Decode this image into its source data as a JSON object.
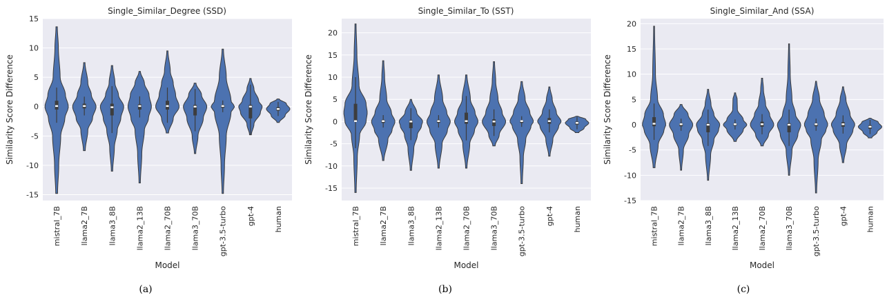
{
  "chart_data": [
    {
      "type": "violin",
      "title": "Single_Similar_Degree (SSD)",
      "xlabel": "Model",
      "ylabel": "Similarity Score Difference",
      "ylim": [
        -16,
        15
      ],
      "yticks": [
        -15,
        -10,
        -5,
        0,
        5,
        10,
        15
      ],
      "caption": "(a)",
      "categories": [
        "mistral_7B",
        "llama2_7B",
        "llama3_8B",
        "llama2_13B",
        "llama2_70B",
        "llama3_70B",
        "gpt-3.5-turbo",
        "gpt-4",
        "human"
      ],
      "violins": [
        {
          "min": -14.8,
          "max": 13.6,
          "q1": -0.5,
          "median": 0.1,
          "q3": 1.0,
          "profile": [
            [
              -14.8,
              0.08
            ],
            [
              -10,
              0.18
            ],
            [
              -5,
              0.35
            ],
            [
              -2,
              0.7
            ],
            [
              0,
              1.0
            ],
            [
              2,
              0.75
            ],
            [
              5,
              0.3
            ],
            [
              10,
              0.15
            ],
            [
              13.6,
              0.06
            ]
          ]
        },
        {
          "min": -7.5,
          "max": 7.5,
          "q1": -0.3,
          "median": 0.1,
          "q3": 0.5,
          "profile": [
            [
              -7.5,
              0.08
            ],
            [
              -4,
              0.3
            ],
            [
              -2,
              0.7
            ],
            [
              0,
              1.0
            ],
            [
              2,
              0.6
            ],
            [
              4,
              0.3
            ],
            [
              7.5,
              0.06
            ]
          ]
        },
        {
          "min": -11,
          "max": 7,
          "q1": -1.5,
          "median": -0.1,
          "q3": 0.5,
          "profile": [
            [
              -11,
              0.06
            ],
            [
              -7,
              0.2
            ],
            [
              -4,
              0.45
            ],
            [
              -2,
              0.75
            ],
            [
              0,
              1.0
            ],
            [
              2,
              0.55
            ],
            [
              4,
              0.25
            ],
            [
              7,
              0.06
            ]
          ]
        },
        {
          "min": -13,
          "max": 6,
          "q1": -0.5,
          "median": 0.1,
          "q3": 0.4,
          "profile": [
            [
              -13,
              0.06
            ],
            [
              -8,
              0.18
            ],
            [
              -4,
              0.4
            ],
            [
              -2,
              0.75
            ],
            [
              0,
              1.0
            ],
            [
              2,
              0.8
            ],
            [
              4,
              0.4
            ],
            [
              6,
              0.06
            ]
          ]
        },
        {
          "min": -4.5,
          "max": 9.5,
          "q1": -0.5,
          "median": 0.1,
          "q3": 1.0,
          "profile": [
            [
              -4.5,
              0.1
            ],
            [
              -2,
              0.5
            ],
            [
              0,
              1.0
            ],
            [
              2,
              0.7
            ],
            [
              4,
              0.5
            ],
            [
              6,
              0.25
            ],
            [
              9.5,
              0.05
            ]
          ]
        },
        {
          "min": -8,
          "max": 4,
          "q1": -1.5,
          "median": 0.0,
          "q3": 0.3,
          "profile": [
            [
              -8,
              0.06
            ],
            [
              -5,
              0.25
            ],
            [
              -2,
              0.7
            ],
            [
              0,
              1.0
            ],
            [
              2,
              0.55
            ],
            [
              4,
              0.08
            ]
          ]
        },
        {
          "min": -14.8,
          "max": 9.8,
          "q1": -0.2,
          "median": 0.1,
          "q3": 0.3,
          "profile": [
            [
              -14.8,
              0.06
            ],
            [
              -10,
              0.15
            ],
            [
              -5,
              0.3
            ],
            [
              -1,
              0.7
            ],
            [
              0,
              1.0
            ],
            [
              1,
              0.7
            ],
            [
              5,
              0.3
            ],
            [
              9.8,
              0.06
            ]
          ]
        },
        {
          "min": -4.8,
          "max": 4.8,
          "q1": -2.0,
          "median": 0.0,
          "q3": 0.3,
          "profile": [
            [
              -4.8,
              0.08
            ],
            [
              -3,
              0.3
            ],
            [
              -1,
              0.85
            ],
            [
              0,
              1.0
            ],
            [
              1,
              0.7
            ],
            [
              3,
              0.3
            ],
            [
              4.8,
              0.06
            ]
          ]
        },
        {
          "min": -2.7,
          "max": 1.3,
          "q1": -0.7,
          "median": -0.4,
          "q3": -0.1,
          "profile": [
            [
              -2.7,
              0.1
            ],
            [
              -1.5,
              0.6
            ],
            [
              -0.4,
              1.0
            ],
            [
              0.5,
              0.7
            ],
            [
              1.3,
              0.1
            ]
          ]
        }
      ]
    },
    {
      "type": "violin",
      "title": "Single_Similar_To (SST)",
      "xlabel": "Model",
      "ylabel": "Similarity Score Difference",
      "ylim": [
        -17.8,
        23.2
      ],
      "yticks": [
        -15,
        -10,
        -5,
        0,
        5,
        10,
        15,
        20
      ],
      "caption": "(b)",
      "categories": [
        "mistral_7B",
        "llama2_7B",
        "llama3_8B",
        "llama2_13B",
        "llama2_70B",
        "llama3_70B",
        "gpt-3.5-turbo",
        "gpt-4",
        "human"
      ],
      "violins": [
        {
          "min": -16,
          "max": 22,
          "q1": 0.0,
          "median": 0.1,
          "q3": 4.0,
          "profile": [
            [
              -16,
              0.06
            ],
            [
              -8,
              0.15
            ],
            [
              -3,
              0.35
            ],
            [
              0,
              0.9
            ],
            [
              2,
              1.0
            ],
            [
              4,
              0.9
            ],
            [
              8,
              0.3
            ],
            [
              15,
              0.12
            ],
            [
              22,
              0.05
            ]
          ]
        },
        {
          "min": -8.8,
          "max": 13.7,
          "q1": -0.3,
          "median": 0.1,
          "q3": 0.4,
          "profile": [
            [
              -8.8,
              0.06
            ],
            [
              -4,
              0.4
            ],
            [
              -2,
              0.75
            ],
            [
              0,
              1.0
            ],
            [
              2,
              0.7
            ],
            [
              5,
              0.3
            ],
            [
              10,
              0.12
            ],
            [
              13.7,
              0.05
            ]
          ]
        },
        {
          "min": -11,
          "max": 5,
          "q1": -1.5,
          "median": 0.0,
          "q3": 0.3,
          "profile": [
            [
              -11,
              0.06
            ],
            [
              -6,
              0.25
            ],
            [
              -3,
              0.55
            ],
            [
              -1,
              0.9
            ],
            [
              0,
              1.0
            ],
            [
              2,
              0.5
            ],
            [
              5,
              0.06
            ]
          ]
        },
        {
          "min": -10.5,
          "max": 10.5,
          "q1": -0.3,
          "median": 0.1,
          "q3": 0.4,
          "profile": [
            [
              -10.5,
              0.06
            ],
            [
              -5,
              0.3
            ],
            [
              -2,
              0.75
            ],
            [
              0,
              1.0
            ],
            [
              2,
              0.7
            ],
            [
              5,
              0.35
            ],
            [
              10.5,
              0.06
            ]
          ]
        },
        {
          "min": -10.5,
          "max": 10.5,
          "q1": -0.5,
          "median": 0.1,
          "q3": 2.0,
          "profile": [
            [
              -10.5,
              0.06
            ],
            [
              -5,
              0.3
            ],
            [
              -2,
              0.7
            ],
            [
              0,
              1.0
            ],
            [
              2,
              0.75
            ],
            [
              5,
              0.35
            ],
            [
              10.5,
              0.06
            ]
          ]
        },
        {
          "min": -5.5,
          "max": 13.5,
          "q1": -1.0,
          "median": 0.0,
          "q3": 0.5,
          "profile": [
            [
              -5.5,
              0.1
            ],
            [
              -3,
              0.45
            ],
            [
              0,
              1.0
            ],
            [
              2,
              0.7
            ],
            [
              5,
              0.35
            ],
            [
              9,
              0.15
            ],
            [
              13.5,
              0.05
            ]
          ]
        },
        {
          "min": -14,
          "max": 9,
          "q1": -0.3,
          "median": 0.1,
          "q3": 0.3,
          "profile": [
            [
              -14,
              0.06
            ],
            [
              -8,
              0.15
            ],
            [
              -4,
              0.35
            ],
            [
              -1,
              0.8
            ],
            [
              0,
              1.0
            ],
            [
              2,
              0.7
            ],
            [
              5,
              0.3
            ],
            [
              9,
              0.06
            ]
          ]
        },
        {
          "min": -7.8,
          "max": 7.8,
          "q1": -0.5,
          "median": 0.1,
          "q3": 0.8,
          "profile": [
            [
              -7.8,
              0.06
            ],
            [
              -4,
              0.3
            ],
            [
              -1,
              0.8
            ],
            [
              0,
              1.0
            ],
            [
              2,
              0.6
            ],
            [
              5,
              0.25
            ],
            [
              7.8,
              0.05
            ]
          ]
        },
        {
          "min": -2.5,
          "max": 1.2,
          "q1": -0.7,
          "median": -0.3,
          "q3": 0.0,
          "profile": [
            [
              -2.5,
              0.15
            ],
            [
              -1.5,
              0.6
            ],
            [
              -0.3,
              1.0
            ],
            [
              0.5,
              0.75
            ],
            [
              1.2,
              0.12
            ]
          ]
        }
      ]
    },
    {
      "type": "violin",
      "title": "Single_Similar_And (SSA)",
      "xlabel": "Model",
      "ylabel": "Similarity Score Difference",
      "ylim": [
        -15,
        21
      ],
      "yticks": [
        -15,
        -10,
        -5,
        0,
        5,
        10,
        15,
        20
      ],
      "caption": "(c)",
      "categories": [
        "mistral_7B",
        "llama2_7B",
        "llama3_8B",
        "llama2_13B",
        "llama2_70B",
        "llama3_70B",
        "gpt-3.5-turbo",
        "gpt-4",
        "human"
      ],
      "violins": [
        {
          "min": -8.5,
          "max": 19.5,
          "q1": -0.3,
          "median": 0.2,
          "q3": 1.5,
          "profile": [
            [
              -8.5,
              0.08
            ],
            [
              -4,
              0.35
            ],
            [
              -1,
              0.85
            ],
            [
              0,
              1.0
            ],
            [
              2,
              0.8
            ],
            [
              5,
              0.3
            ],
            [
              10,
              0.12
            ],
            [
              19.5,
              0.04
            ]
          ]
        },
        {
          "min": -9,
          "max": 4,
          "q1": -0.3,
          "median": 0.1,
          "q3": 0.3,
          "profile": [
            [
              -9,
              0.05
            ],
            [
              -5,
              0.2
            ],
            [
              -2,
              0.65
            ],
            [
              0,
              1.0
            ],
            [
              2,
              0.6
            ],
            [
              4,
              0.08
            ]
          ]
        },
        {
          "min": -11,
          "max": 7,
          "q1": -1.5,
          "median": 0.0,
          "q3": 0.3,
          "profile": [
            [
              -11,
              0.05
            ],
            [
              -6,
              0.22
            ],
            [
              -3,
              0.5
            ],
            [
              -1,
              0.9
            ],
            [
              0,
              1.0
            ],
            [
              2,
              0.5
            ],
            [
              4,
              0.25
            ],
            [
              7,
              0.05
            ]
          ]
        },
        {
          "min": -3.3,
          "max": 6.3,
          "q1": -0.2,
          "median": 0.1,
          "q3": 0.3,
          "profile": [
            [
              -3.3,
              0.1
            ],
            [
              -1,
              0.7
            ],
            [
              0,
              1.0
            ],
            [
              1,
              0.7
            ],
            [
              3,
              0.2
            ],
            [
              5,
              0.18
            ],
            [
              6.3,
              0.05
            ]
          ]
        },
        {
          "min": -4.2,
          "max": 9.2,
          "q1": -0.4,
          "median": 0.1,
          "q3": 0.6,
          "profile": [
            [
              -4.2,
              0.1
            ],
            [
              -2,
              0.55
            ],
            [
              0,
              1.0
            ],
            [
              2,
              0.65
            ],
            [
              4,
              0.3
            ],
            [
              7,
              0.12
            ],
            [
              9.2,
              0.05
            ]
          ]
        },
        {
          "min": -10,
          "max": 16,
          "q1": -1.5,
          "median": 0.0,
          "q3": 0.3,
          "profile": [
            [
              -10,
              0.05
            ],
            [
              -5,
              0.25
            ],
            [
              -2,
              0.75
            ],
            [
              0,
              1.0
            ],
            [
              2,
              0.55
            ],
            [
              5,
              0.25
            ],
            [
              10,
              0.1
            ],
            [
              16,
              0.04
            ]
          ]
        },
        {
          "min": -13.5,
          "max": 8.6,
          "q1": -0.3,
          "median": 0.1,
          "q3": 0.3,
          "profile": [
            [
              -13.5,
              0.05
            ],
            [
              -7,
              0.18
            ],
            [
              -3,
              0.45
            ],
            [
              -1,
              0.85
            ],
            [
              0,
              1.0
            ],
            [
              2,
              0.7
            ],
            [
              5,
              0.3
            ],
            [
              8.6,
              0.05
            ]
          ]
        },
        {
          "min": -7.5,
          "max": 7.5,
          "q1": -0.4,
          "median": 0.1,
          "q3": 0.5,
          "profile": [
            [
              -7.5,
              0.06
            ],
            [
              -4,
              0.3
            ],
            [
              -1,
              0.85
            ],
            [
              0,
              1.0
            ],
            [
              2,
              0.6
            ],
            [
              5,
              0.25
            ],
            [
              7.5,
              0.05
            ]
          ]
        },
        {
          "min": -2.6,
          "max": 1.3,
          "q1": -0.8,
          "median": -0.4,
          "q3": -0.1,
          "profile": [
            [
              -2.6,
              0.15
            ],
            [
              -1.5,
              0.6
            ],
            [
              -0.4,
              1.0
            ],
            [
              0.5,
              0.7
            ],
            [
              1.3,
              0.1
            ]
          ]
        }
      ]
    }
  ]
}
